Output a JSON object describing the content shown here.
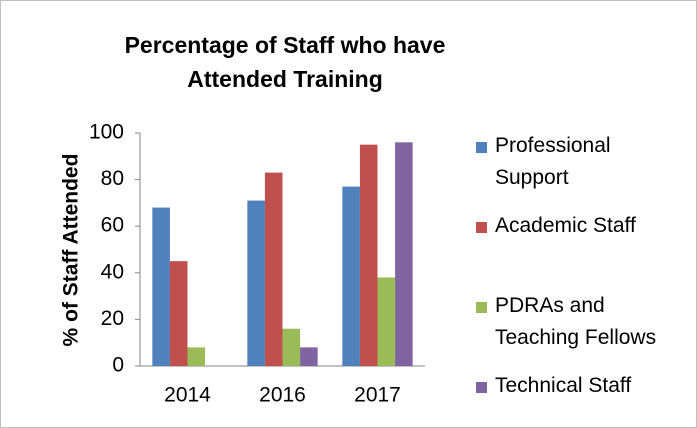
{
  "chart_data": {
    "type": "bar",
    "title": "Percentage of Staff who have Attended Training",
    "y_label": "% of Staff Attended",
    "categories": [
      "2014",
      "2016",
      "2017"
    ],
    "series": [
      {
        "name": "Professional Support",
        "color": "#4f81bd",
        "values": [
          68,
          71,
          77
        ]
      },
      {
        "name": "Academic Staff",
        "color": "#c0504d",
        "values": [
          45,
          83,
          95
        ]
      },
      {
        "name": "PDRAs and Teaching Fellows",
        "color": "#9bbb59",
        "values": [
          8,
          16,
          38
        ]
      },
      {
        "name": "Technical Staff",
        "color": "#8064a2",
        "values": [
          null,
          8,
          96
        ]
      }
    ],
    "ylim": [
      0,
      100
    ],
    "yticks": [
      0,
      20,
      40,
      60,
      80,
      100
    ],
    "grid": false,
    "legend": "right"
  }
}
